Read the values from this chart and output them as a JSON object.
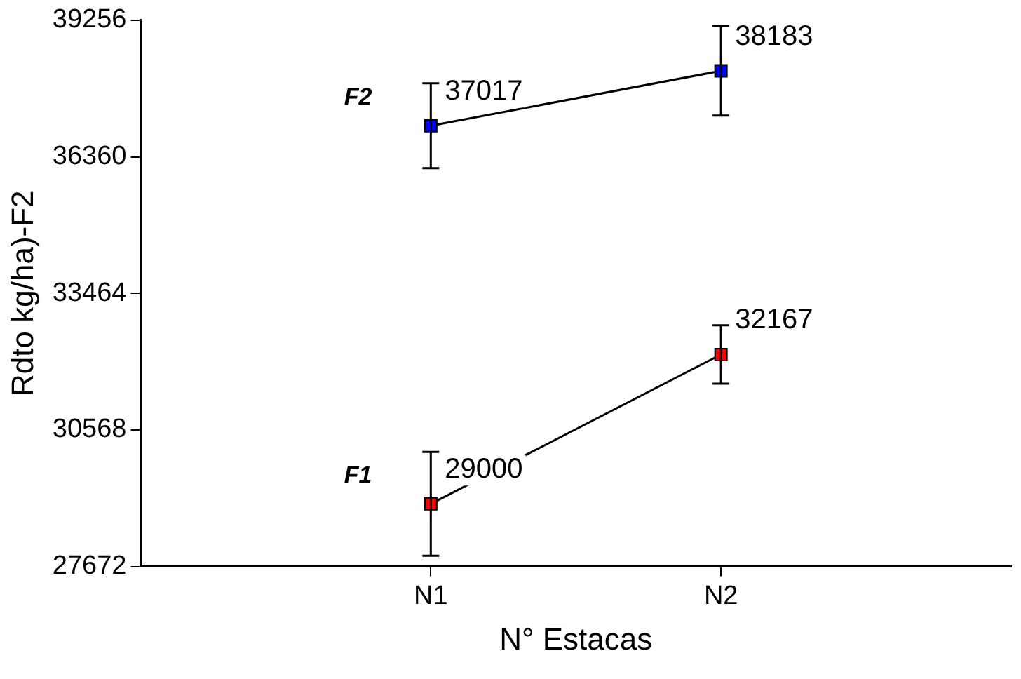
{
  "chart_data": {
    "type": "line",
    "xlabel": "N° Estacas",
    "ylabel": "Rdto kg/ha)-F2",
    "categories": [
      "N1",
      "N2"
    ],
    "series": [
      {
        "name": "F1",
        "color": "#ff0000",
        "values": [
          29000,
          32167
        ],
        "errors": [
          1100,
          620
        ]
      },
      {
        "name": "F2",
        "color": "#0000ff",
        "values": [
          37017,
          38183
        ],
        "errors": [
          900,
          950
        ]
      }
    ],
    "ylim": [
      27672,
      39256
    ],
    "yticks": [
      27672,
      30568,
      33464,
      36360,
      39256
    ],
    "grid": false,
    "legend": false,
    "marker": "square",
    "line_style": "solid",
    "data_labels": true
  }
}
